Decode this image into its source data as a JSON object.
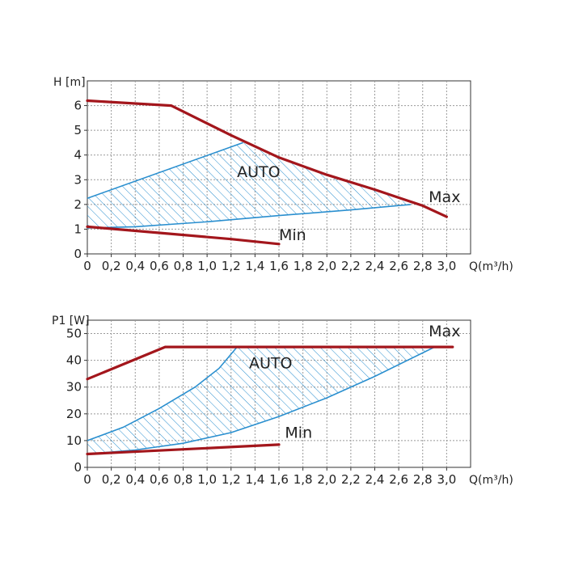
{
  "chart_data": [
    {
      "type": "line",
      "ylabel": "H [m]",
      "xlabel": "Q(m³/h)",
      "xlim": [
        0,
        3.2
      ],
      "ylim": [
        0,
        7
      ],
      "x_ticks": [
        "0",
        "0,2",
        "0,4",
        "0,6",
        "0,8",
        "1,0",
        "1,2",
        "1,4",
        "1,6",
        "1,8",
        "2,0",
        "2,2",
        "2,4",
        "2,6",
        "2,8",
        "3,0"
      ],
      "y_ticks": [
        "0",
        "1",
        "2",
        "3",
        "4",
        "5",
        "6"
      ],
      "grid": true,
      "series": [
        {
          "name": "Max",
          "color": "#a3161c",
          "points": [
            [
              0,
              6.2
            ],
            [
              0.7,
              6.0
            ],
            [
              1.2,
              4.8
            ],
            [
              1.6,
              3.9
            ],
            [
              2.0,
              3.2
            ],
            [
              2.4,
              2.6
            ],
            [
              2.8,
              1.95
            ],
            [
              3.0,
              1.5
            ]
          ]
        },
        {
          "name": "Min",
          "color": "#a3161c",
          "points": [
            [
              0,
              1.1
            ],
            [
              0.6,
              0.85
            ],
            [
              1.2,
              0.6
            ],
            [
              1.6,
              0.4
            ]
          ]
        }
      ],
      "auto_region": {
        "label": "AUTO",
        "color": "#2a8fcf",
        "upper": [
          [
            0,
            2.25
          ],
          [
            1.3,
            4.5
          ]
        ],
        "lower": [
          [
            0,
            1.05
          ],
          [
            0.4,
            1.1
          ],
          [
            1.0,
            1.3
          ],
          [
            1.6,
            1.55
          ],
          [
            2.2,
            1.78
          ],
          [
            2.7,
            2.0
          ]
        ],
        "cap": [
          [
            1.3,
            4.5
          ],
          [
            1.6,
            3.9
          ],
          [
            2.0,
            3.2
          ],
          [
            2.4,
            2.6
          ],
          [
            2.7,
            2.0
          ]
        ]
      },
      "annotations": [
        {
          "text": "AUTO",
          "x": 1.25,
          "y": 3.1
        },
        {
          "text": "Max",
          "x": 2.85,
          "y": 2.1
        },
        {
          "text": "Min",
          "x": 1.6,
          "y": 0.55
        }
      ]
    },
    {
      "type": "line",
      "ylabel": "P1 [W]",
      "xlabel": "Q(m³/h)",
      "xlim": [
        0,
        3.2
      ],
      "ylim": [
        0,
        55
      ],
      "x_ticks": [
        "0",
        "0,2",
        "0,4",
        "0,6",
        "0,8",
        "1,0",
        "1,2",
        "1,4",
        "1,6",
        "1,8",
        "2,0",
        "2,2",
        "2,4",
        "2,6",
        "2,8",
        "3,0"
      ],
      "y_ticks": [
        "0",
        "10",
        "20",
        "30",
        "40",
        "50"
      ],
      "grid": true,
      "series": [
        {
          "name": "Max",
          "color": "#a3161c",
          "points": [
            [
              0,
              33
            ],
            [
              0.65,
              45
            ],
            [
              3.05,
              45
            ]
          ]
        },
        {
          "name": "Min",
          "color": "#a3161c",
          "points": [
            [
              0,
              5
            ],
            [
              1.6,
              8.5
            ]
          ]
        }
      ],
      "auto_region": {
        "label": "AUTO",
        "color": "#2a8fcf",
        "upper": [
          [
            0,
            10
          ],
          [
            0.3,
            15
          ],
          [
            0.6,
            22
          ],
          [
            0.9,
            30
          ],
          [
            1.1,
            37
          ],
          [
            1.25,
            45
          ]
        ],
        "lower": [
          [
            0,
            5
          ],
          [
            0.4,
            6.5
          ],
          [
            0.8,
            9
          ],
          [
            1.2,
            13
          ],
          [
            1.6,
            19
          ],
          [
            2.0,
            26
          ],
          [
            2.4,
            34
          ],
          [
            2.9,
            45
          ]
        ],
        "cap": [
          [
            1.25,
            45
          ],
          [
            2.9,
            45
          ]
        ]
      },
      "annotations": [
        {
          "text": "AUTO",
          "x": 1.35,
          "y": 37
        },
        {
          "text": "Max",
          "x": 2.85,
          "y": 49
        },
        {
          "text": "Min",
          "x": 1.65,
          "y": 11
        }
      ]
    }
  ]
}
